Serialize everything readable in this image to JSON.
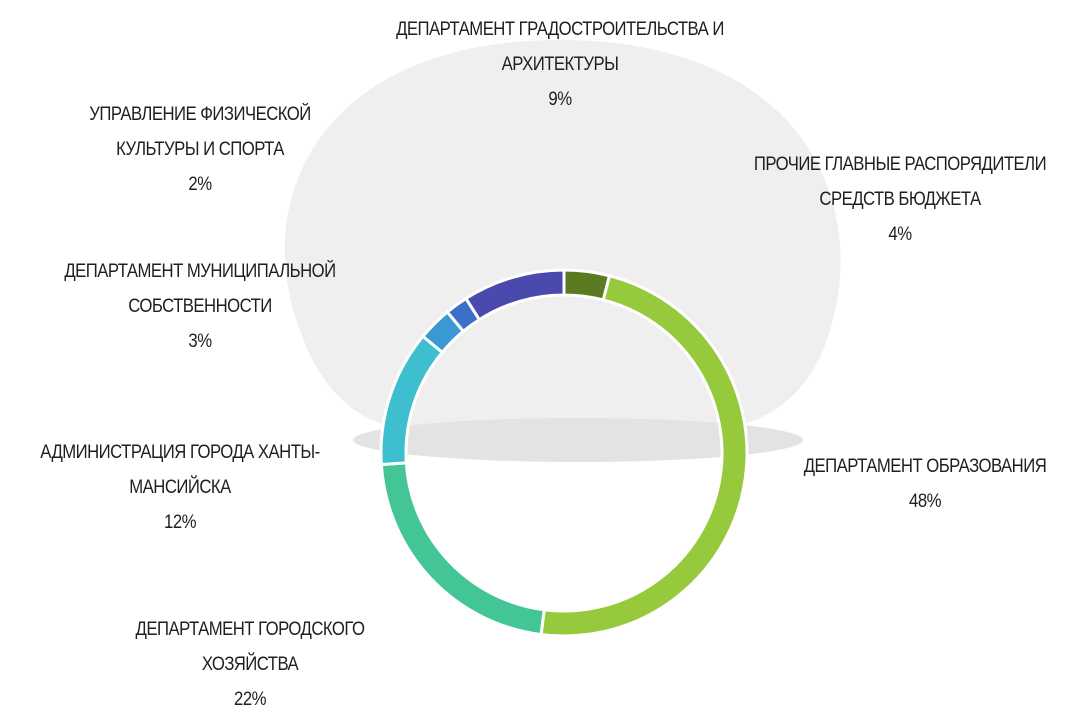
{
  "chart_data": {
    "type": "pie",
    "categories": [
      "ПРОЧИЕ ГЛАВНЫЕ РАСПОРЯДИТЕЛИ СРЕДСТВ БЮДЖЕТА",
      "ДЕПАРТАМЕНТ ОБРАЗОВАНИЯ",
      "ДЕПАРТАМЕНТ ГОРОДСКОГО ХОЗЯЙСТВА",
      "АДМИНИСТРАЦИЯ ГОРОДА ХАНТЫ-МАНСИЙСКА",
      "ДЕПАРТАМЕНТ МУНИЦИПАЛЬНОЙ СОБСТВЕННОСТИ",
      "УПРАВЛЕНИЕ ФИЗИЧЕСКОЙ КУЛЬТУРЫ И СПОРТА",
      "ДЕПАРТАМЕНТ ГРАДОСТРОИТЕЛЬСТВА И АРХИТЕКТУРЫ"
    ],
    "values": [
      4,
      48,
      22,
      12,
      3,
      2,
      9
    ],
    "value_labels": [
      "4%",
      "48%",
      "22%",
      "12%",
      "3%",
      "2%",
      "9%"
    ],
    "colors": [
      "#5b7b23",
      "#97c93d",
      "#43c596",
      "#3ebfcf",
      "#3a98d3",
      "#3c6fc8",
      "#4a4aae"
    ]
  }
}
